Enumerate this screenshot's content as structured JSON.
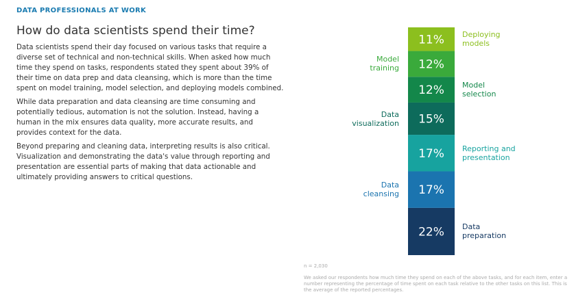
{
  "header": "DATA PROFESSIONALS AT WORK",
  "title": "How do data scientists spend their time?",
  "paragraphs": [
    "Data scientists spend their day focused on various tasks that require a diverse set of technical and non-technical skills. When asked how much time they spend on tasks, respondents stated they spent about 39% of their time on data prep and data cleansing, which is more than the time spent on model training, model selection, and deploying models combined.",
    "While data preparation and data cleansing are time consuming and potentially tedious, automation is not the solution. Instead, having a human in the mix ensures data quality, more accurate results, and provides context for the data.",
    "Beyond preparing and cleaning data, interpreting results is also critical. Visualization and demonstrating the data's value through reporting and presentation are essential parts of making that data actionable and ultimately providing answers to critical questions."
  ],
  "chart_data": {
    "type": "stacked-bar",
    "categories": [
      "Data\npreparation",
      "Data\ncleansing",
      "Reporting and\npresentation",
      "Data\nvisualization",
      "Model\nselection",
      "Model\ntraining",
      "Deploying\nmodels"
    ],
    "values": [
      22,
      17,
      17,
      15,
      12,
      12,
      11
    ],
    "value_labels": [
      "22%",
      "17%",
      "17%",
      "15%",
      "12%",
      "12%",
      "11%"
    ],
    "colors": [
      "#163a63",
      "#1b74af",
      "#17a39f",
      "#0d6b5b",
      "#13874a",
      "#3aaa3b",
      "#8cbf1e"
    ]
  },
  "footnote": "n = 2,030",
  "note": "We asked our respondents how much time they spend on each of the above tasks, and for each item, enter a number representing the percentage of time spent on each task relative to the other tasks on this list. This is the average of the reported percentages."
}
